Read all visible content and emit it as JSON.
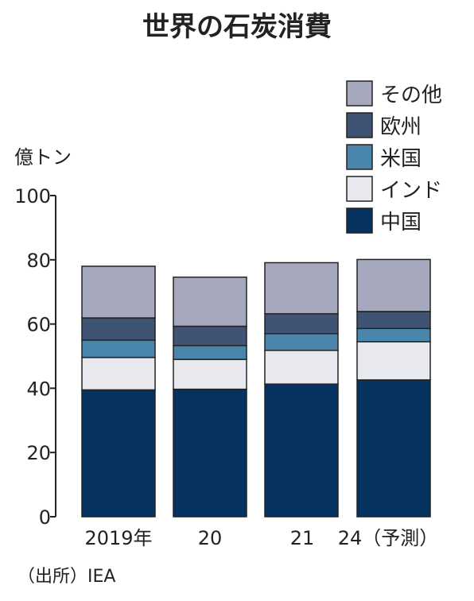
{
  "chart_data": {
    "type": "bar",
    "stacked": true,
    "title": "世界の石炭消費",
    "ylabel": "億トン",
    "ylim": [
      0,
      100
    ],
    "yticks": [
      0,
      20,
      40,
      60,
      80,
      100
    ],
    "categories": [
      "2019年",
      "20",
      "21",
      "24（予測）"
    ],
    "series": [
      {
        "name": "中国",
        "color": "#05325e",
        "values": [
          39.5,
          39.7,
          41.3,
          42.6
        ]
      },
      {
        "name": "インド",
        "color": "#e7e9ee",
        "values": [
          10.1,
          9.3,
          10.5,
          11.9
        ]
      },
      {
        "name": "米国",
        "color": "#4a86ac",
        "values": [
          5.4,
          4.3,
          5.2,
          4.1
        ]
      },
      {
        "name": "欧州",
        "color": "#3f5474",
        "values": [
          6.9,
          6.0,
          6.2,
          5.3
        ]
      },
      {
        "name": "その他",
        "color": "#a6a9bd",
        "values": [
          16.1,
          15.3,
          15.9,
          16.2
        ]
      }
    ],
    "legend_position": "top-right",
    "grid": false,
    "source": "（出所）IEA"
  }
}
